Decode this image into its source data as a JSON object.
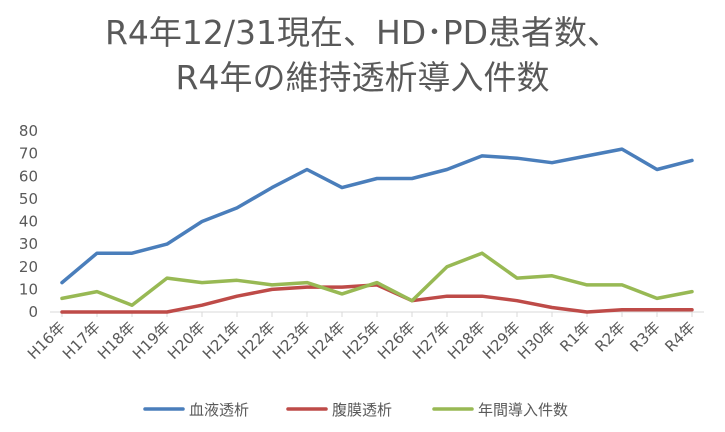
{
  "chart_data": {
    "type": "line",
    "title_line1": "R4年12/31現在、HD･PD患者数、",
    "title_line2": "R4年の維持透析導入件数",
    "categories": [
      "H16年",
      "H17年",
      "H18年",
      "H19年",
      "H20年",
      "H21年",
      "H22年",
      "H23年",
      "H24年",
      "H25年",
      "H26年",
      "H27年",
      "H28年",
      "H29年",
      "H30年",
      "R1年",
      "R2年",
      "R3年",
      "R4年"
    ],
    "ylim": [
      0,
      80
    ],
    "yticks": [
      0,
      10,
      20,
      30,
      40,
      50,
      60,
      70,
      80
    ],
    "grid": false,
    "legend": "bottom",
    "series": [
      {
        "name": "血液透析",
        "color": "#4a7ebb",
        "values": [
          13,
          26,
          26,
          30,
          40,
          46,
          55,
          63,
          55,
          59,
          59,
          63,
          69,
          68,
          66,
          69,
          72,
          63,
          67
        ]
      },
      {
        "name": "腹膜透析",
        "color": "#be4b48",
        "values": [
          0,
          0,
          0,
          0,
          3,
          7,
          10,
          11,
          11,
          12,
          5,
          7,
          7,
          5,
          2,
          0,
          1,
          1,
          1
        ]
      },
      {
        "name": "年間導入件数",
        "color": "#98b954",
        "values": [
          6,
          9,
          3,
          15,
          13,
          14,
          12,
          13,
          8,
          13,
          5,
          20,
          26,
          15,
          16,
          12,
          12,
          6,
          9
        ]
      }
    ]
  }
}
